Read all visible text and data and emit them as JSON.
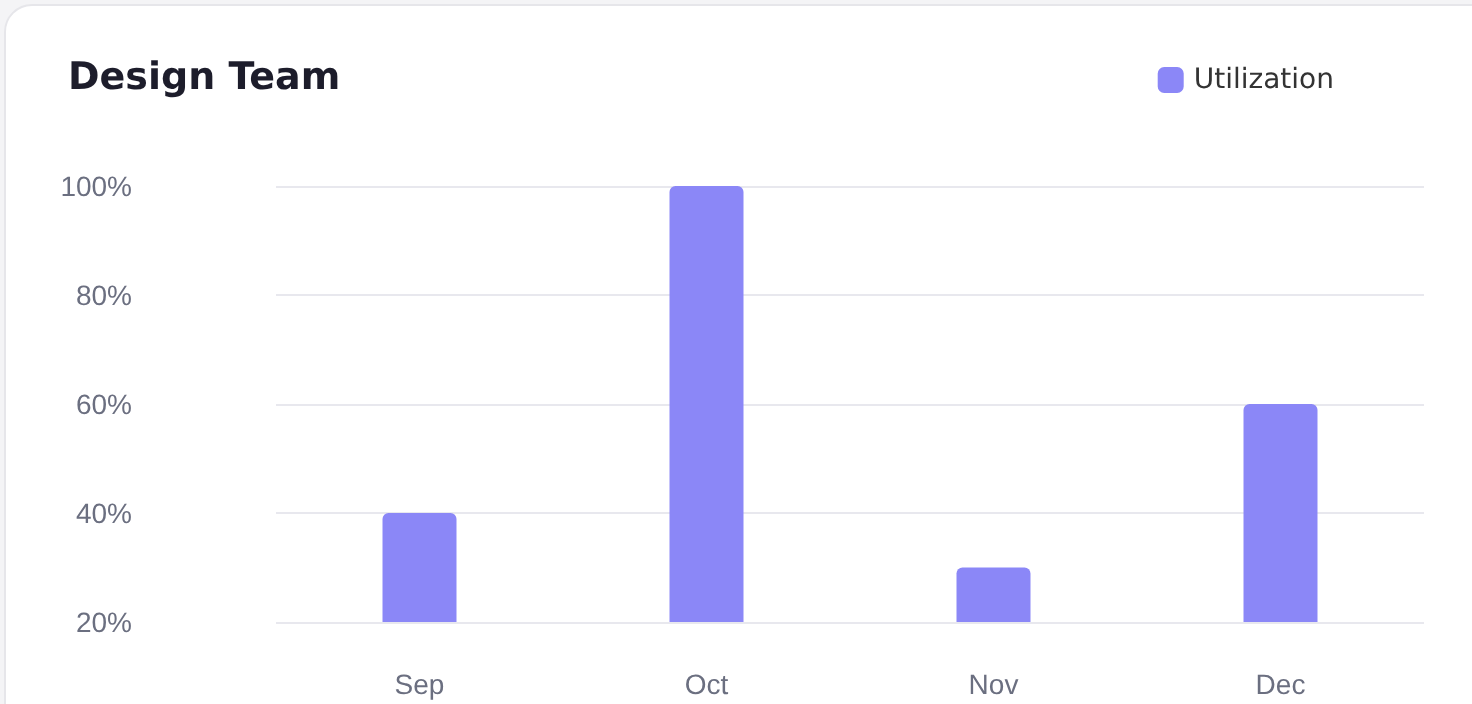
{
  "chart_data": {
    "type": "bar",
    "title": "Design Team",
    "categories": [
      "Sep",
      "Oct",
      "Nov",
      "Dec"
    ],
    "series": [
      {
        "name": "Utilization",
        "color": "#8b87f7",
        "values": [
          40,
          100,
          30,
          60
        ]
      }
    ],
    "ylim": [
      20,
      100
    ],
    "yticks": [
      {
        "value": 20,
        "label": "20%"
      },
      {
        "value": 40,
        "label": "40%"
      },
      {
        "value": 60,
        "label": "60%"
      },
      {
        "value": 80,
        "label": "80%"
      },
      {
        "value": 100,
        "label": "100%"
      }
    ],
    "grid": "y",
    "legend": "top right"
  }
}
